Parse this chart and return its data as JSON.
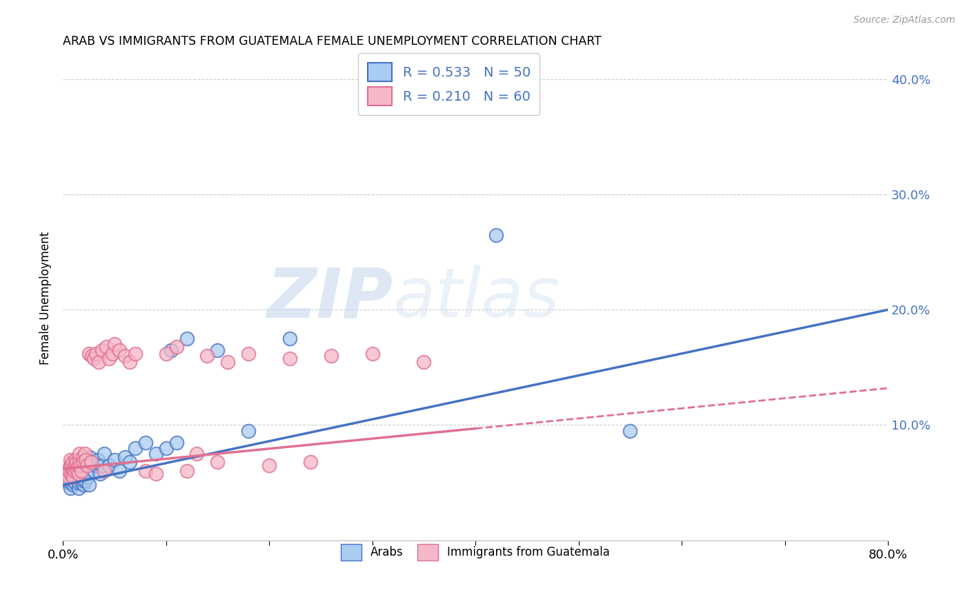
{
  "title": "ARAB VS IMMIGRANTS FROM GUATEMALA FEMALE UNEMPLOYMENT CORRELATION CHART",
  "source": "Source: ZipAtlas.com",
  "ylabel": "Female Unemployment",
  "xlim": [
    0.0,
    0.8
  ],
  "ylim": [
    0.0,
    0.42
  ],
  "xticks": [
    0.0,
    0.1,
    0.2,
    0.3,
    0.4,
    0.5,
    0.6,
    0.7,
    0.8
  ],
  "yticks": [
    0.0,
    0.1,
    0.2,
    0.3,
    0.4
  ],
  "color_arab": "#aaccf0",
  "color_guatemala": "#f5b8c8",
  "color_line_arab": "#4472c4",
  "color_line_guatemala": "#e07090",
  "color_text_blue": "#4472c4",
  "watermark_zip": "ZIP",
  "watermark_atlas": "atlas",
  "background_color": "#ffffff",
  "arab_x": [
    0.005,
    0.007,
    0.008,
    0.009,
    0.01,
    0.01,
    0.01,
    0.012,
    0.013,
    0.014,
    0.015,
    0.015,
    0.016,
    0.017,
    0.018,
    0.018,
    0.019,
    0.02,
    0.02,
    0.02,
    0.021,
    0.022,
    0.023,
    0.024,
    0.025,
    0.026,
    0.028,
    0.03,
    0.032,
    0.034,
    0.036,
    0.038,
    0.04,
    0.045,
    0.05,
    0.055,
    0.06,
    0.065,
    0.07,
    0.08,
    0.09,
    0.1,
    0.105,
    0.11,
    0.12,
    0.15,
    0.18,
    0.22,
    0.42,
    0.55
  ],
  "arab_y": [
    0.05,
    0.045,
    0.05,
    0.055,
    0.048,
    0.052,
    0.058,
    0.05,
    0.055,
    0.06,
    0.045,
    0.05,
    0.055,
    0.06,
    0.05,
    0.065,
    0.055,
    0.048,
    0.052,
    0.058,
    0.065,
    0.052,
    0.06,
    0.055,
    0.048,
    0.072,
    0.068,
    0.06,
    0.065,
    0.07,
    0.058,
    0.065,
    0.075,
    0.065,
    0.07,
    0.06,
    0.072,
    0.068,
    0.08,
    0.085,
    0.075,
    0.08,
    0.165,
    0.085,
    0.175,
    0.165,
    0.095,
    0.175,
    0.265,
    0.095
  ],
  "guatemala_x": [
    0.003,
    0.005,
    0.006,
    0.007,
    0.007,
    0.008,
    0.008,
    0.009,
    0.009,
    0.01,
    0.01,
    0.011,
    0.012,
    0.012,
    0.013,
    0.013,
    0.014,
    0.015,
    0.015,
    0.016,
    0.016,
    0.017,
    0.018,
    0.019,
    0.02,
    0.021,
    0.022,
    0.023,
    0.025,
    0.027,
    0.028,
    0.03,
    0.032,
    0.035,
    0.038,
    0.04,
    0.042,
    0.045,
    0.048,
    0.05,
    0.055,
    0.06,
    0.065,
    0.07,
    0.08,
    0.09,
    0.1,
    0.11,
    0.12,
    0.13,
    0.14,
    0.15,
    0.16,
    0.18,
    0.2,
    0.22,
    0.24,
    0.26,
    0.3,
    0.35
  ],
  "guatemala_y": [
    0.06,
    0.055,
    0.06,
    0.065,
    0.07,
    0.058,
    0.065,
    0.06,
    0.068,
    0.055,
    0.062,
    0.06,
    0.065,
    0.07,
    0.062,
    0.068,
    0.06,
    0.058,
    0.065,
    0.07,
    0.075,
    0.065,
    0.06,
    0.072,
    0.068,
    0.075,
    0.07,
    0.065,
    0.162,
    0.068,
    0.16,
    0.158,
    0.162,
    0.155,
    0.165,
    0.06,
    0.168,
    0.158,
    0.162,
    0.17,
    0.165,
    0.16,
    0.155,
    0.162,
    0.06,
    0.058,
    0.162,
    0.168,
    0.06,
    0.075,
    0.16,
    0.068,
    0.155,
    0.162,
    0.065,
    0.158,
    0.068,
    0.16,
    0.162,
    0.155
  ],
  "arab_line_x0": 0.0,
  "arab_line_y0": 0.048,
  "arab_line_x1": 0.8,
  "arab_line_y1": 0.2,
  "guat_line_x0": 0.0,
  "guat_line_y0": 0.062,
  "guat_line_x1": 0.8,
  "guat_line_y1": 0.132
}
